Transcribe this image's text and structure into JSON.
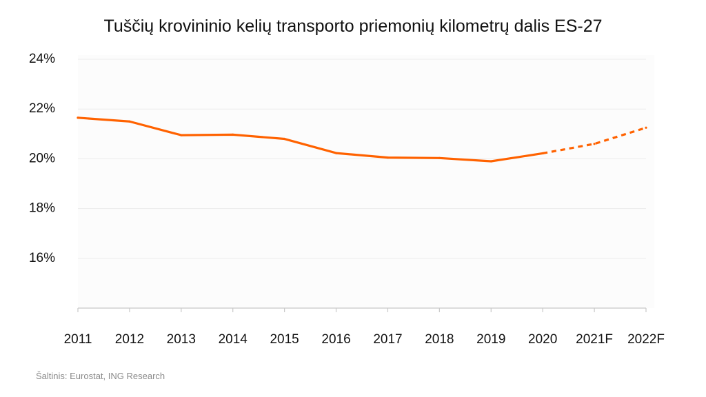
{
  "title": "Tuščių krovininio kelių transporto priemonių kilometrų dalis ES-27",
  "source": "Šaltinis: Eurostat, ING Research",
  "colors": {
    "line": "#FF6200",
    "grid": "#ebebeb",
    "axis": "#c8c8c8",
    "plot_bg": "#fcfcfc"
  },
  "chart_data": {
    "type": "line",
    "title": "Tuščių krovininio kelių transporto priemonių kilometrų dalis ES-27",
    "xlabel": "",
    "ylabel": "",
    "categories": [
      "2011",
      "2012",
      "2013",
      "2014",
      "2015",
      "2016",
      "2017",
      "2018",
      "2019",
      "2020",
      "2021F",
      "2022F"
    ],
    "ytick_labels": [
      "24%",
      "22%",
      "20%",
      "18%",
      "16%"
    ],
    "ytick_values": [
      24,
      22,
      20,
      18,
      16
    ],
    "ylim": [
      14,
      24
    ],
    "grid": true,
    "series": [
      {
        "values": [
          21.65,
          21.5,
          20.95,
          20.97,
          20.8,
          20.23,
          20.05,
          20.03,
          19.9,
          20.22,
          20.6,
          21.25
        ],
        "forecast_from_index": 9,
        "style_actual": "solid",
        "style_forecast": "dashed"
      }
    ]
  }
}
